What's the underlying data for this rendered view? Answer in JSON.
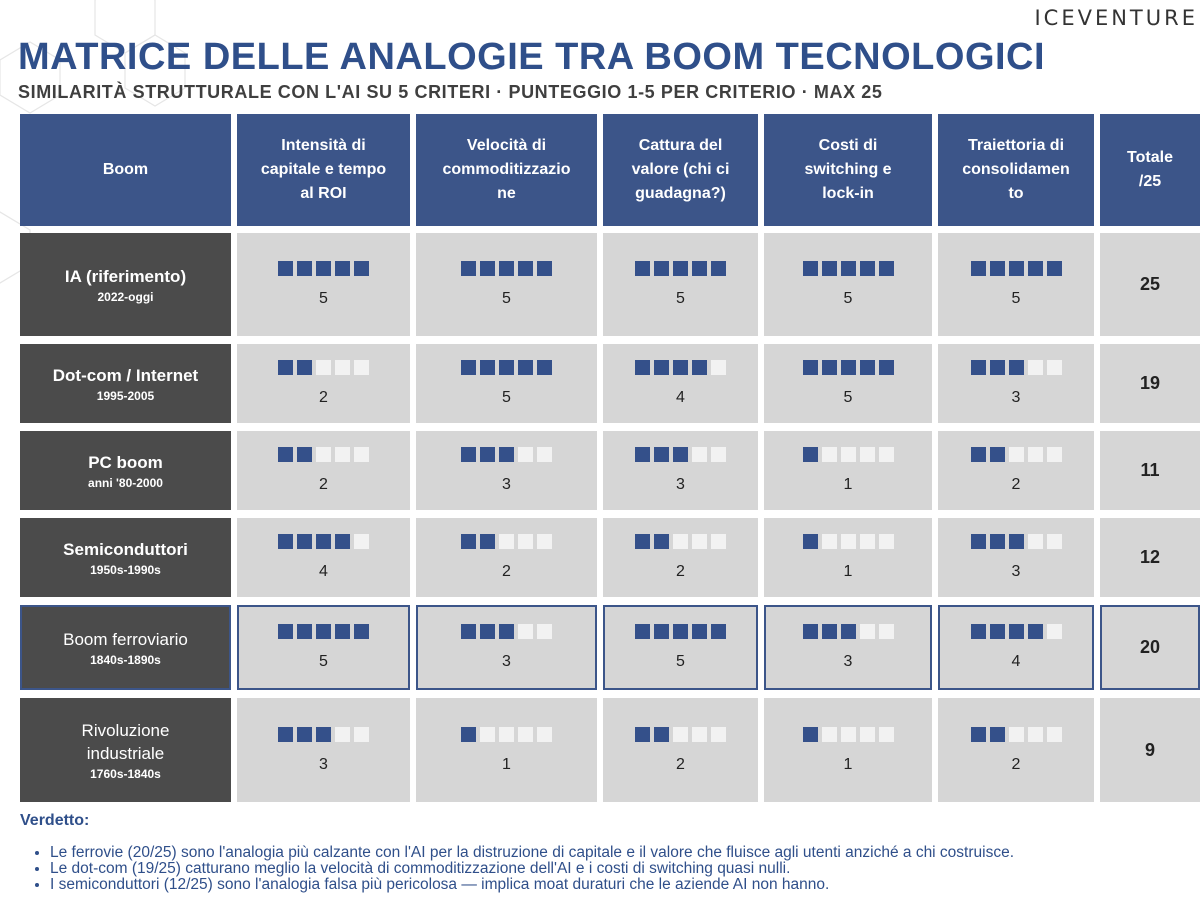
{
  "brand": "ICEVENTURE",
  "title": "MATRICE DELLE ANALOGIE TRA BOOM TECNOLOGICI",
  "subtitle": "SIMILARITÀ STRUTTURALE CON L'AI SU 5 CRITERI · PUNTEGGIO 1-5 PER CRITERIO · MAX 25",
  "headers": [
    "Boom",
    "Intensità di capitale e tempo al ROI",
    "Velocità di commoditizzazione",
    "Cattura del valore (chi ci guadagna?)",
    "Costi di switching e lock-in",
    "Traiettoria di consolidamento",
    "Totale /25"
  ],
  "header_lines": [
    [
      "Boom"
    ],
    [
      "Intensità di",
      "capitale e tempo",
      "al ROI"
    ],
    [
      "Velocità di",
      "commoditizzazio",
      "ne"
    ],
    [
      "Cattura del",
      "valore (chi ci",
      "guadagna?)"
    ],
    [
      "Costi di",
      "switching e",
      "lock-in"
    ],
    [
      "Traiettoria di",
      "consolidamen",
      "to"
    ],
    [
      "Totale",
      "/25"
    ]
  ],
  "rows": [
    {
      "name": "IA (riferimento)",
      "years": "2022-oggi",
      "scores": [
        5,
        5,
        5,
        5,
        5
      ],
      "total": "25",
      "bold": true,
      "highlight": false
    },
    {
      "name": "Dot-com / Internet",
      "years": "1995-2005",
      "scores": [
        2,
        5,
        4,
        5,
        3
      ],
      "total": "19",
      "bold": true,
      "highlight": false
    },
    {
      "name": "PC boom",
      "years": "anni '80-2000",
      "scores": [
        2,
        3,
        3,
        1,
        2
      ],
      "total": "11",
      "bold": true,
      "highlight": false
    },
    {
      "name": "Semiconduttori",
      "years": "1950s-1990s",
      "scores": [
        4,
        2,
        2,
        1,
        3
      ],
      "total": "12",
      "bold": true,
      "highlight": false
    },
    {
      "name": "Boom ferroviario",
      "years": "1840s-1890s",
      "scores": [
        5,
        3,
        5,
        3,
        4
      ],
      "total": "20",
      "bold": false,
      "highlight": true
    },
    {
      "name": "Rivoluzione industriale",
      "years": "1760s-1840s",
      "scores": [
        3,
        1,
        2,
        1,
        2
      ],
      "total": "9",
      "bold": false,
      "highlight": false
    }
  ],
  "verdict": {
    "title": "Verdetto:",
    "items": [
      "Le ferrovie (20/25) sono l'analogia più calzante con l'AI per la distruzione di capitale e il valore che fluisce agli utenti anziché a chi costruisce.",
      "Le dot-com (19/25) catturano meglio la velocità di commoditizzazione dell'AI e i costi di switching quasi nulli.",
      "I semiconduttori (12/25) sono l'analogia falsa più pericolosa — implica moat duraturi che le aziende AI non hanno."
    ]
  },
  "colors": {
    "accent": "#3c5589",
    "dark": "#4b4b4b",
    "cell": "#d6d6d6",
    "dot_on": "#34508a",
    "dot_off": "#f2f2f2"
  }
}
